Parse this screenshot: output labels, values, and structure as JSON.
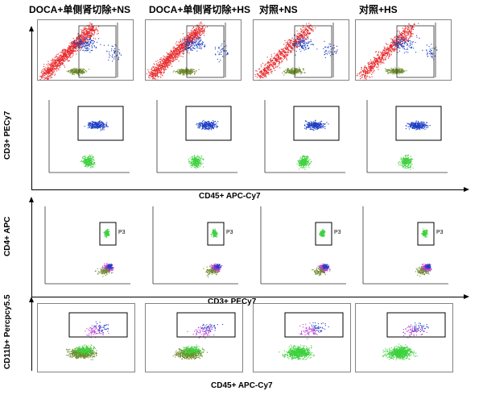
{
  "columns": [
    {
      "title": "DOCA+单侧肾切除+NS"
    },
    {
      "title": "DOCA+单侧肾切除+HS"
    },
    {
      "title": "对照+NS"
    },
    {
      "title": "对照+HS"
    }
  ],
  "axes": {
    "row1_y": "CD3+ PECy7",
    "row1_x": "CD45+ APC-Cy7",
    "row2_y": "CD4+ APC",
    "row2_x": "CD3+ PECy7",
    "row3_y": "CD11b+ Percpcy5.5",
    "row3_x": "CD45+ APC-Cy7"
  },
  "gate_label": "P3",
  "colors": {
    "red": "#e8282b",
    "blue": "#1d3fc4",
    "green": "#3fd13f",
    "olive": "#6c8a2a",
    "magenta": "#c03ad8",
    "gate": "#000000"
  }
}
